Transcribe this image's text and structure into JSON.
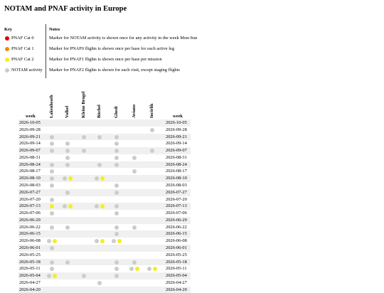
{
  "title": "NOTAM and PNAF activity in Europe",
  "key": {
    "header": "Key",
    "items": [
      {
        "label": "PNAF Cat 0",
        "color": "#dd0000"
      },
      {
        "label": "PNAF Cat 1",
        "color": "#f08c00"
      },
      {
        "label": "PNAF Cat 2",
        "color": "#f5ee1e"
      },
      {
        "label": "NOTAM activity",
        "color": "#cccccc"
      }
    ]
  },
  "notes": {
    "header": "Notes",
    "items": [
      "Marker for NOTAM activity is shown once for any activity in the week Mon-Sun",
      "Marker for PNAF0 flights is shown once per base for each active leg",
      "Marker for PNAF1 flights is shown once per base per mission",
      "Marker for PNAF2 flights is shown for each visit, except staging flights"
    ]
  },
  "table": {
    "week_header": "week",
    "bases": [
      "Lakenheath",
      "Volkel",
      "Kleine Brogel",
      "Büchel",
      "Ghedi",
      "Aviano",
      "Incirlik"
    ],
    "rows": [
      {
        "week": "2026-10-05",
        "cells": [
          [],
          [],
          [],
          [],
          [],
          [],
          []
        ]
      },
      {
        "week": "2026-09-28",
        "cells": [
          [],
          [],
          [],
          [],
          [],
          [],
          [
            3
          ]
        ]
      },
      {
        "week": "2026-09-21",
        "cells": [
          [
            3
          ],
          [],
          [
            3
          ],
          [
            3
          ],
          [
            3
          ],
          [],
          []
        ]
      },
      {
        "week": "2026-09-14",
        "cells": [
          [
            3
          ],
          [
            3
          ],
          [],
          [],
          [
            3
          ],
          [],
          []
        ]
      },
      {
        "week": "2026-09-07",
        "cells": [
          [
            3
          ],
          [
            3
          ],
          [
            3
          ],
          [],
          [
            3
          ],
          [],
          [
            3
          ]
        ]
      },
      {
        "week": "2026-08-31",
        "cells": [
          [],
          [
            3
          ],
          [],
          [],
          [
            3
          ],
          [
            3
          ],
          []
        ]
      },
      {
        "week": "2026-08-24",
        "cells": [
          [
            3
          ],
          [
            3
          ],
          [],
          [
            3
          ],
          [
            3
          ],
          [],
          []
        ]
      },
      {
        "week": "2026-08-17",
        "cells": [
          [
            3
          ],
          [],
          [],
          [],
          [],
          [
            3
          ],
          []
        ]
      },
      {
        "week": "2026-08-10",
        "cells": [
          [
            3
          ],
          [
            3,
            2
          ],
          [],
          [
            3,
            2
          ],
          [],
          [],
          []
        ]
      },
      {
        "week": "2026-08-03",
        "cells": [
          [
            3
          ],
          [],
          [],
          [],
          [
            3
          ],
          [],
          []
        ]
      },
      {
        "week": "2026-07-27",
        "cells": [
          [],
          [
            3
          ],
          [],
          [],
          [
            3
          ],
          [],
          []
        ]
      },
      {
        "week": "2026-07-20",
        "cells": [
          [
            3
          ],
          [],
          [],
          [],
          [],
          [],
          []
        ]
      },
      {
        "week": "2026-07-13",
        "cells": [
          [
            2
          ],
          [
            3,
            2
          ],
          [],
          [
            3,
            2
          ],
          [
            3
          ],
          [],
          []
        ]
      },
      {
        "week": "2026-07-06",
        "cells": [
          [
            3
          ],
          [],
          [],
          [],
          [
            3
          ],
          [],
          []
        ]
      },
      {
        "week": "2026-06-29",
        "cells": [
          [],
          [],
          [],
          [],
          [],
          [],
          []
        ]
      },
      {
        "week": "2026-06-22",
        "cells": [
          [
            3
          ],
          [
            3
          ],
          [],
          [],
          [
            3
          ],
          [
            3
          ],
          []
        ]
      },
      {
        "week": "2026-06-15",
        "cells": [
          [],
          [],
          [],
          [],
          [
            3
          ],
          [],
          []
        ]
      },
      {
        "week": "2026-06-08",
        "cells": [
          [
            3,
            2
          ],
          [],
          [],
          [
            3,
            2
          ],
          [
            3,
            2
          ],
          [],
          []
        ]
      },
      {
        "week": "2026-06-01",
        "cells": [
          [
            3
          ],
          [],
          [],
          [],
          [],
          [],
          []
        ]
      },
      {
        "week": "2026-05-25",
        "cells": [
          [],
          [],
          [],
          [],
          [],
          [],
          []
        ]
      },
      {
        "week": "2026-05-18",
        "cells": [
          [
            3
          ],
          [
            3
          ],
          [],
          [],
          [
            3
          ],
          [
            3
          ],
          []
        ]
      },
      {
        "week": "2026-05-11",
        "cells": [
          [
            3
          ],
          [],
          [],
          [],
          [
            3
          ],
          [
            3,
            2
          ],
          [
            3,
            2
          ]
        ]
      },
      {
        "week": "2026-05-04",
        "cells": [
          [
            3,
            2
          ],
          [],
          [
            3
          ],
          [],
          [
            3
          ],
          [],
          []
        ]
      },
      {
        "week": "2026-04-27",
        "cells": [
          [],
          [],
          [],
          [
            3
          ],
          [],
          [],
          []
        ]
      },
      {
        "week": "2026-04-20",
        "cells": [
          [],
          [],
          [],
          [],
          [],
          [],
          []
        ]
      }
    ]
  }
}
